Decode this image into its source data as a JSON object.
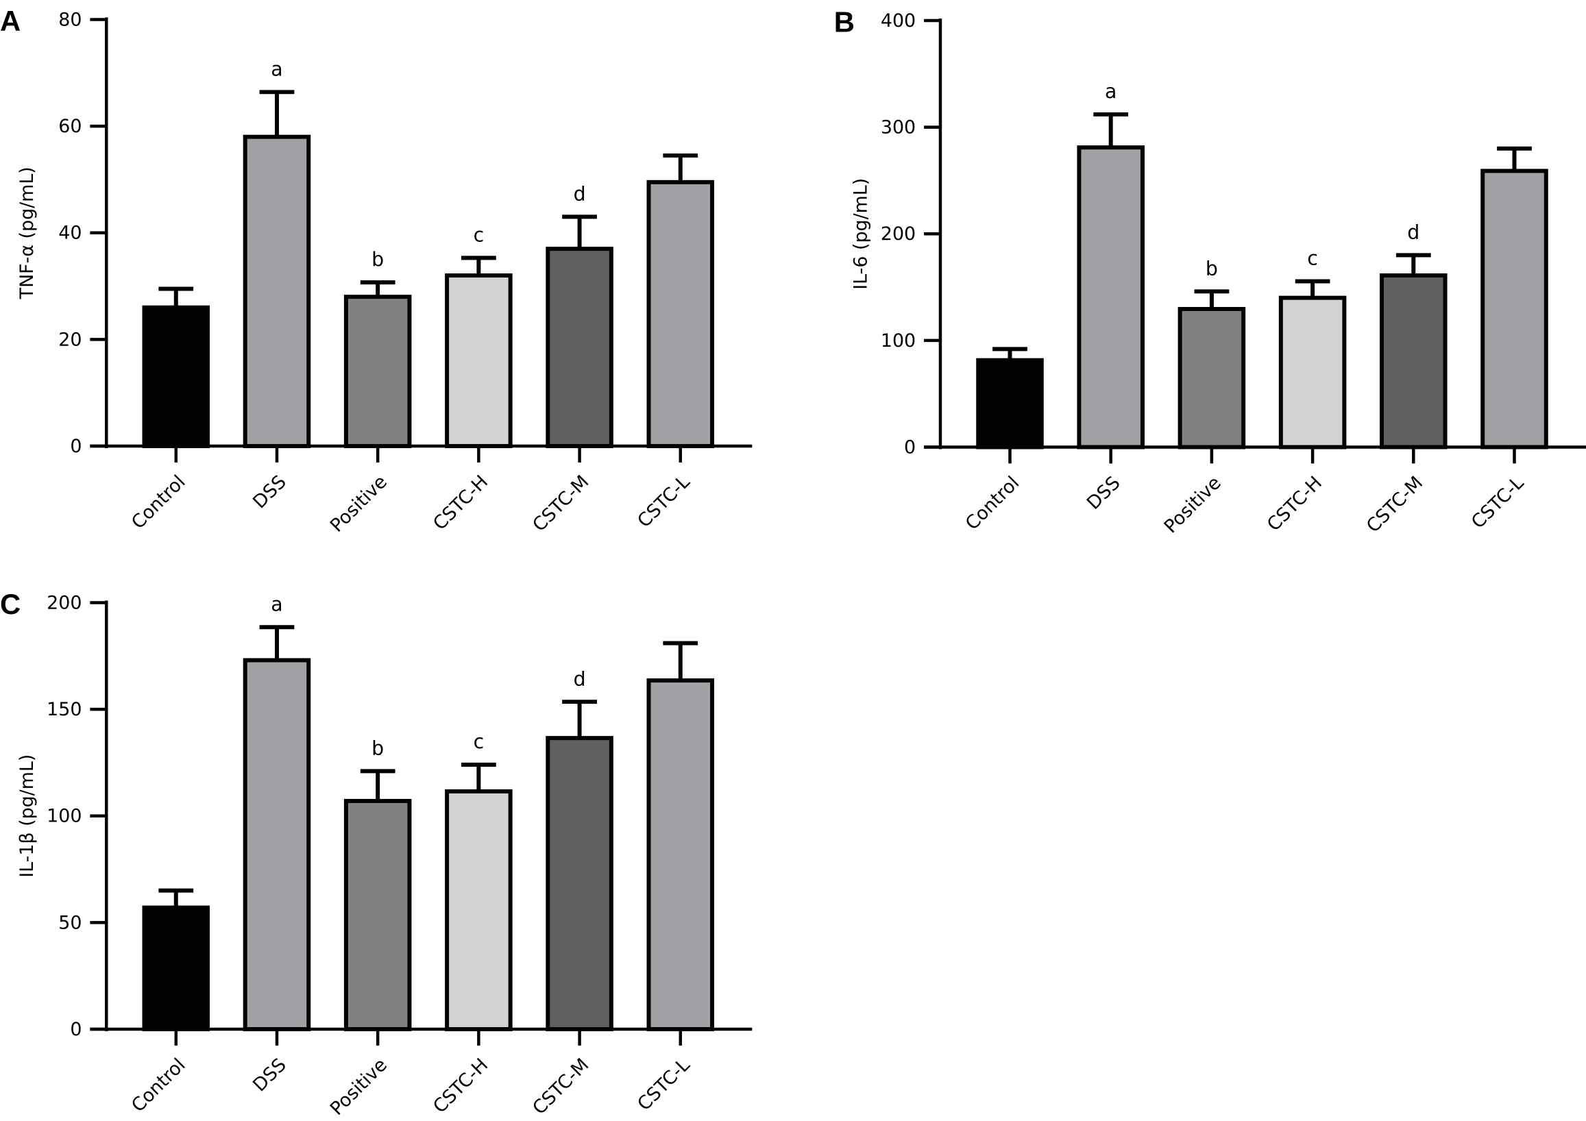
{
  "chart_data": [
    {
      "type": "bar",
      "panel_label": "A",
      "ylabel": "TNF-α (pg/mL)",
      "categories": [
        "Control",
        "DSS",
        "Positive",
        "CSTC-H",
        "CSTC-M",
        "CSTC-L"
      ],
      "values": [
        26,
        58,
        28,
        32,
        37,
        49.5
      ],
      "errors": [
        3.5,
        8.4,
        2.7,
        3.3,
        6,
        5
      ],
      "annotations": [
        null,
        "a",
        "b",
        "c",
        "d",
        null
      ],
      "colors": [
        "#000000",
        "#a0a0a5",
        "#808080",
        "#d3d3d3",
        "#606060",
        "#a0a0a5"
      ],
      "ylim": [
        0,
        80
      ],
      "yticks": [
        0,
        20,
        40,
        60,
        80
      ]
    },
    {
      "type": "bar",
      "panel_label": "B",
      "ylabel": "IL-6 (pg/mL)",
      "categories": [
        "Control",
        "DSS",
        "Positive",
        "CSTC-H",
        "CSTC-M",
        "CSTC-L"
      ],
      "values": [
        81.5,
        281,
        129.5,
        140,
        161,
        259
      ],
      "errors": [
        10.5,
        31,
        16.5,
        15.5,
        19,
        21
      ],
      "annotations": [
        null,
        "a",
        "b",
        "c",
        "d",
        null
      ],
      "colors": [
        "#000000",
        "#a0a0a5",
        "#808080",
        "#d3d3d3",
        "#606060",
        "#a0a0a5"
      ],
      "ylim": [
        0,
        400
      ],
      "yticks": [
        0,
        100,
        200,
        300,
        400
      ]
    },
    {
      "type": "bar",
      "panel_label": "C",
      "ylabel": "IL-1β (pg/mL)",
      "categories": [
        "Control",
        "DSS",
        "Positive",
        "CSTC-H",
        "CSTC-M",
        "CSTC-L"
      ],
      "values": [
        57,
        173,
        107,
        111.5,
        136.5,
        163.5
      ],
      "errors": [
        8,
        15.5,
        14,
        12.5,
        17,
        17.5
      ],
      "annotations": [
        null,
        "a",
        "b",
        "c",
        "d",
        null
      ],
      "colors": [
        "#000000",
        "#a0a0a5",
        "#808080",
        "#d3d3d3",
        "#606060",
        "#a0a0a5"
      ],
      "ylim": [
        0,
        200
      ],
      "yticks": [
        0,
        50,
        100,
        150,
        200
      ]
    }
  ]
}
